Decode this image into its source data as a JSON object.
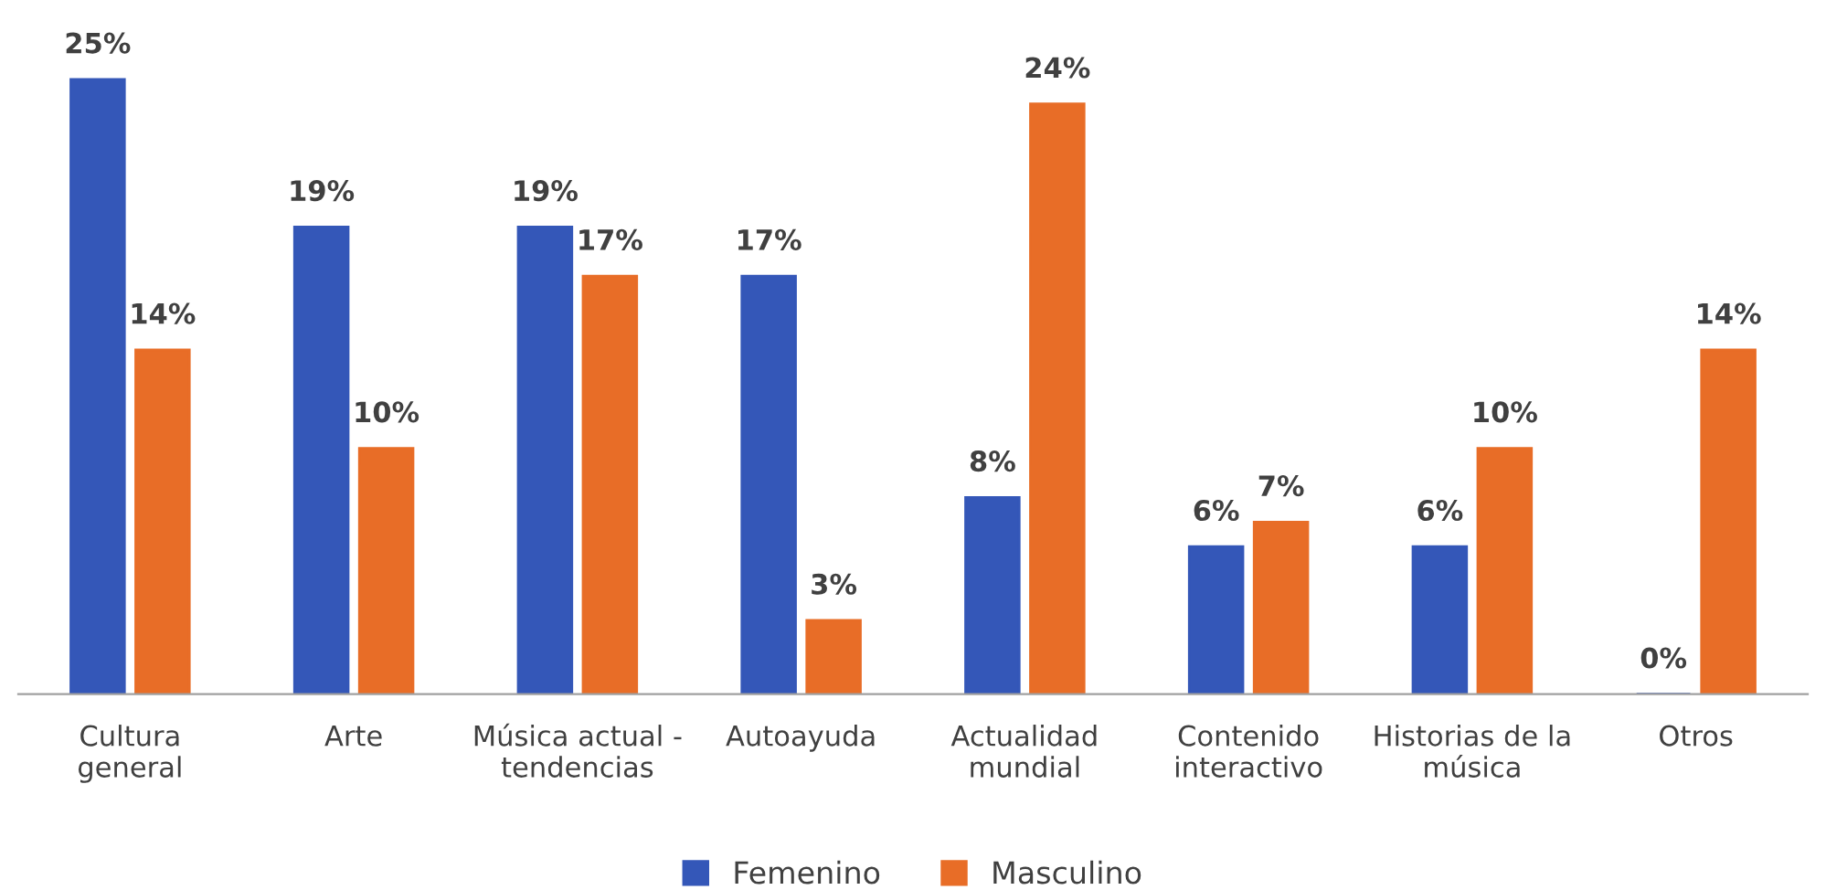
{
  "chart_data": {
    "type": "bar",
    "categories": [
      "Cultura\ngeneral",
      "Arte",
      "Música actual -\ntendencias",
      "Autoayuda",
      "Actualidad\nmundial",
      "Contenido\ninteractivo",
      "Historias de la\nmúsica",
      "Otros"
    ],
    "series": [
      {
        "name": "Femenino",
        "color": "#3457b8",
        "values": [
          25,
          19,
          19,
          17,
          8,
          6,
          6,
          0
        ],
        "value_labels": [
          "25%",
          "19%",
          "19%",
          "17%",
          "8%",
          "6%",
          "6%",
          "0%"
        ]
      },
      {
        "name": "Masculino",
        "color": "#e86d27",
        "values": [
          14,
          10,
          17,
          3,
          24,
          7,
          10,
          14
        ],
        "value_labels": [
          "14%",
          "10%",
          "17%",
          "3%",
          "24%",
          "7%",
          "10%",
          "14%"
        ]
      }
    ],
    "legend": "bottom",
    "grid": false
  }
}
